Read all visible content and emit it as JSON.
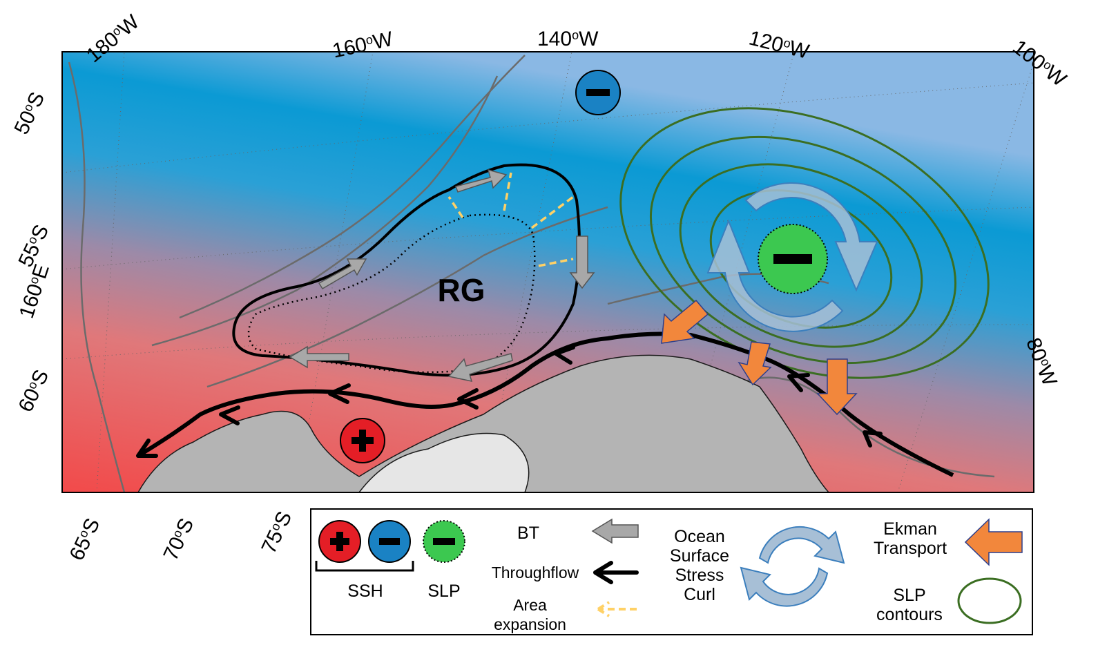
{
  "map": {
    "region_label": "RG",
    "longitude_labels": [
      {
        "deg": "180",
        "unit": "W"
      },
      {
        "deg": "160",
        "unit": "W"
      },
      {
        "deg": "140",
        "unit": "W"
      },
      {
        "deg": "120",
        "unit": "W"
      },
      {
        "deg": "100",
        "unit": "W"
      },
      {
        "deg": "80",
        "unit": "W"
      },
      {
        "deg": "160",
        "unit": "E"
      }
    ],
    "latitude_labels_left": [
      {
        "deg": "50",
        "unit": "S"
      },
      {
        "deg": "55",
        "unit": "S"
      },
      {
        "deg": "60",
        "unit": "S"
      }
    ],
    "latitude_labels_bottom": [
      {
        "deg": "65",
        "unit": "S"
      },
      {
        "deg": "70",
        "unit": "S"
      },
      {
        "deg": "75",
        "unit": "S"
      }
    ],
    "colors": {
      "ssh_high": "#f04848",
      "ssh_low": "#1aa0d8",
      "slp_low": "#3cc850",
      "slp_contour": "#3b6e22",
      "bt_arrow": "#a8a8a8",
      "throughflow": "#000000",
      "area_expansion": "#ffd166",
      "stress_curl": "#a7bfd6",
      "ekman": "#f2873c",
      "land": "#b4b4b4",
      "ice_shelf": "#e6e6e6"
    }
  },
  "legend": {
    "ssh": "SSH",
    "slp": "SLP",
    "bt": "BT",
    "throughflow": "Throughflow",
    "area_expansion": [
      "Area",
      "expansion"
    ],
    "stress_curl": [
      "Ocean",
      "Surface",
      "Stress",
      "Curl"
    ],
    "ekman": [
      "Ekman",
      "Transport"
    ],
    "slp_contours": [
      "SLP",
      "contours"
    ]
  }
}
